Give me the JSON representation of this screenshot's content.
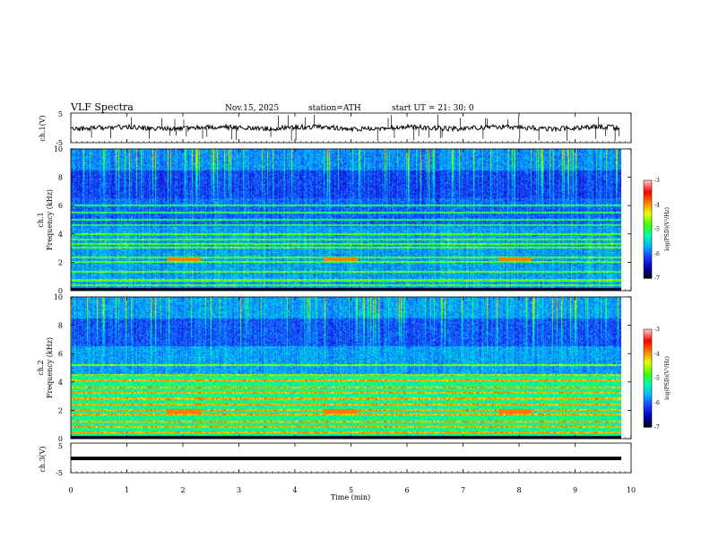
{
  "header": {
    "title": "VLF  Spectra",
    "date": "Nov.15, 2025",
    "station": "station=ATH",
    "start": "start  UT  =   21: 30: 0"
  },
  "chart_data": {
    "type": "heatmap",
    "title": "VLF  Spectra",
    "xlabel": "Time  (min)",
    "xlim": [
      0,
      10
    ],
    "x_ticks": [
      "0",
      "1",
      "2",
      "3",
      "4",
      "5",
      "6",
      "7",
      "8",
      "9",
      "10"
    ],
    "panels": [
      {
        "id": "ch1-waveform",
        "type": "line",
        "ylabel": "ch.1(V)",
        "ylim": [
          -5,
          5
        ],
        "y_ticks": [
          "5",
          "-5"
        ],
        "baseline_value": 0
      },
      {
        "id": "ch1-spectrogram",
        "type": "heatmap",
        "ylabel_top": "ch.1",
        "ylabel": "Frequency  (kHz)",
        "ylim": [
          0,
          10
        ],
        "y_ticks": [
          "0",
          "2",
          "4",
          "6",
          "8",
          "10"
        ],
        "colorbar": {
          "label": "log(PSD)(V²/Hz)",
          "range": [
            -7,
            -3
          ],
          "ticks": [
            "-3",
            "-4",
            "-5",
            "-6",
            "-7"
          ]
        },
        "horizontal_lines_khz": [
          0.35,
          0.7,
          1.3,
          2.0,
          2.3,
          3.0,
          3.3,
          3.6,
          4.0,
          4.6,
          5.0,
          5.5,
          6.0
        ],
        "quiet_bursts_min": [
          1.7,
          4.5,
          7.6
        ]
      },
      {
        "id": "ch2-spectrogram",
        "type": "heatmap",
        "ylabel_top": "ch.2",
        "ylabel": "Frequency  (kHz)",
        "ylim": [
          0,
          10
        ],
        "y_ticks": [
          "0",
          "2",
          "4",
          "6",
          "8",
          "10"
        ],
        "colorbar": {
          "label": "log(PSD)(V²/Hz)",
          "range": [
            -7,
            -3
          ],
          "ticks": [
            "-3",
            "-4",
            "-5",
            "-6",
            "-7"
          ]
        },
        "horizontal_lines_khz": [
          0.4,
          0.8,
          1.2,
          1.7,
          2.0,
          2.4,
          2.8,
          3.2,
          3.6,
          4.1,
          4.5,
          5.2
        ],
        "quiet_bursts_min": [
          1.7,
          4.5,
          7.6
        ]
      },
      {
        "id": "ch3-waveform",
        "type": "line",
        "ylabel": "ch.3(V)",
        "ylim": [
          -5,
          5
        ],
        "y_ticks": [
          "5",
          "-5"
        ],
        "baseline_value": -0.5
      }
    ],
    "data_end_min": 9.8
  },
  "colors": {
    "background": "#ffffff",
    "axis": "#000000",
    "colormap": [
      "#000000",
      "#0000b0",
      "#1e3cff",
      "#00b4ff",
      "#00ffb0",
      "#40ff00",
      "#e8ff00",
      "#ff8000",
      "#ff0000",
      "#ffc0c0"
    ]
  }
}
